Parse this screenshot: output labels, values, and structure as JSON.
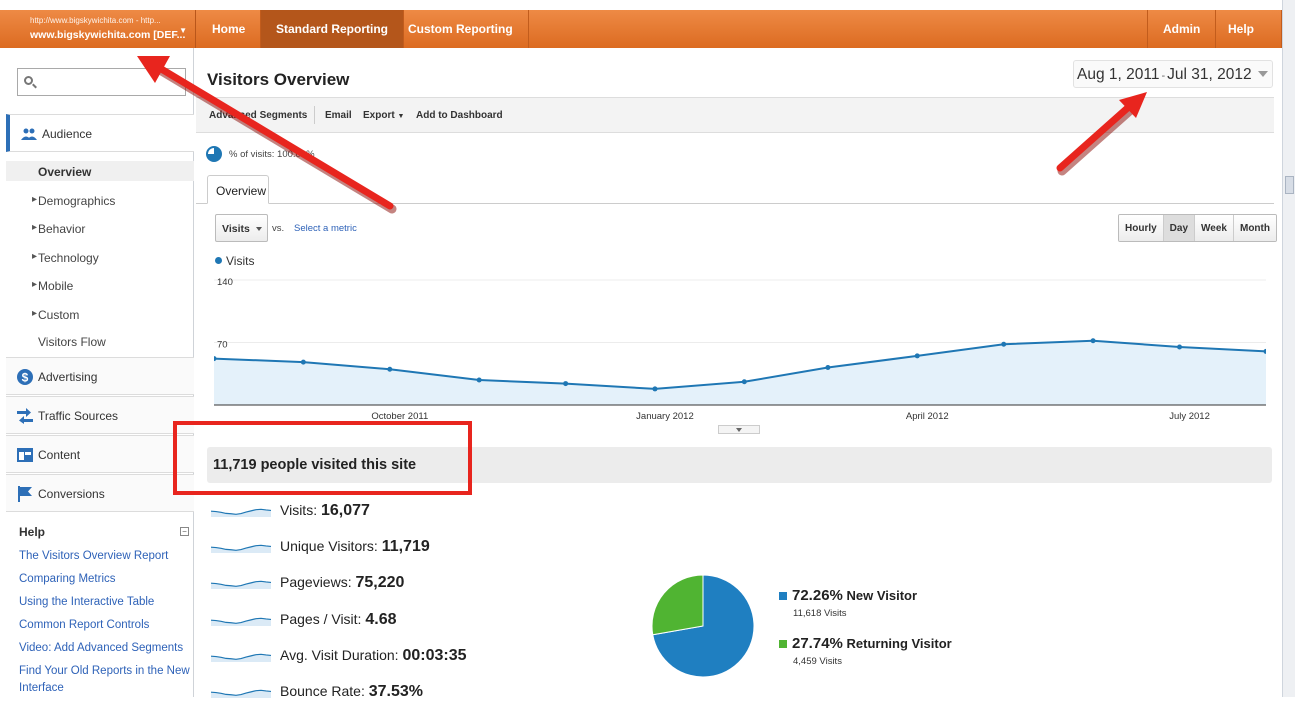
{
  "topbar": {
    "account_url": "http://www.bigskywichita.com - http...",
    "account_name": "www.bigskywichita.com [DEF...",
    "nav": [
      "Home",
      "Standard Reporting",
      "Custom Reporting"
    ],
    "admin": "Admin",
    "help": "Help"
  },
  "sidebar": {
    "search_placeholder": "",
    "audience": "Audience",
    "overview": "Overview",
    "sub_items": [
      "Demographics",
      "Behavior",
      "Technology",
      "Mobile",
      "Custom"
    ],
    "visitors_flow": "Visitors Flow",
    "advertising": "Advertising",
    "traffic_sources": "Traffic Sources",
    "content": "Content",
    "conversions": "Conversions",
    "help_title": "Help",
    "help_links": [
      "The Visitors Overview Report",
      "Comparing Metrics",
      "Using the Interactive Table",
      "Common Report Controls",
      "Video: Add Advanced Segments",
      "Find Your Old Reports in the New",
      "Interface"
    ]
  },
  "main": {
    "title": "Visitors Overview",
    "date_start": "Aug 1, 2011",
    "date_end": "Jul 31, 2012",
    "toolbar": [
      "Advanced Segments",
      "Email",
      "Export",
      "Add to Dashboard"
    ],
    "percent_label": "% of visits: 100.00%",
    "tab": "Overview",
    "metric": "Visits",
    "vs": "vs.",
    "select_metric": "Select a metric",
    "granularity": [
      "Hourly",
      "Day",
      "Week",
      "Month"
    ],
    "summary": "11,719 people visited this site",
    "metrics": [
      {
        "label": "Visits:",
        "value": "16,077"
      },
      {
        "label": "Unique Visitors:",
        "value": "11,719"
      },
      {
        "label": "Pageviews:",
        "value": "75,220"
      },
      {
        "label": "Pages / Visit:",
        "value": "4.68"
      },
      {
        "label": "Avg. Visit Duration:",
        "value": "00:03:35"
      },
      {
        "label": "Bounce Rate:",
        "value": "37.53%"
      }
    ],
    "pie": [
      {
        "pct": "72.26%",
        "name": "New Visitor",
        "visits": "11,618 Visits",
        "color": "#1f7fc1"
      },
      {
        "pct": "27.74%",
        "name": "Returning Visitor",
        "visits": "4,459 Visits",
        "color": "#50b432"
      }
    ]
  },
  "colors": {
    "accent_orange": "#dc6b21",
    "link_blue": "#2e62b8",
    "series_blue": "#1f77b4",
    "annotation_red": "#e8251e"
  },
  "chart_data": {
    "type": "area",
    "legend": "Visits",
    "y_ticks": [
      "140",
      "70"
    ],
    "ylim": [
      0,
      140
    ],
    "x_labels": [
      "October 2011",
      "January 2012",
      "April 2012",
      "July 2012"
    ],
    "x": [
      "2011-08-01",
      "2011-09-01",
      "2011-10-01",
      "2011-11-01",
      "2011-12-01",
      "2012-01-01",
      "2012-02-01",
      "2012-03-01",
      "2012-04-01",
      "2012-05-01",
      "2012-06-01",
      "2012-07-01",
      "2012-07-31"
    ],
    "values": [
      52,
      48,
      40,
      28,
      24,
      18,
      26,
      42,
      55,
      68,
      72,
      65,
      60
    ]
  }
}
